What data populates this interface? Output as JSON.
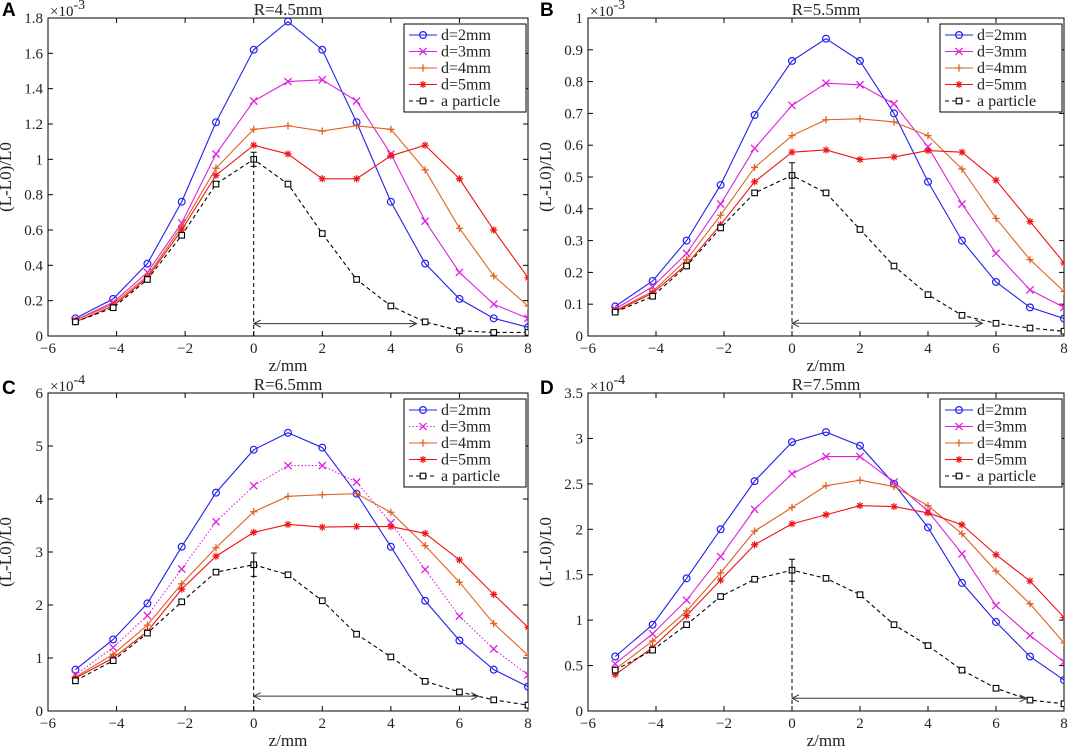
{
  "chart_data": [
    {
      "panel": "A",
      "type": "line",
      "title": "R=4.5mm",
      "xlabel": "z/mm",
      "ylabel": "(L-L0)/L0",
      "multiplier": "×10",
      "exponent": "-3",
      "xlim": [
        -6,
        8
      ],
      "ylim": [
        0,
        1.8
      ],
      "xticks": [
        -6,
        -4,
        -2,
        0,
        2,
        4,
        6,
        8
      ],
      "yticks": [
        0,
        0.2,
        0.4,
        0.6,
        0.8,
        1,
        1.2,
        1.4,
        1.6,
        1.8
      ],
      "ytick_labels": [
        "0",
        "0.2",
        "0.4",
        "0.6",
        "0.8",
        "1",
        "1.2",
        "1.4",
        "1.6",
        "1.8"
      ],
      "x": [
        -5.2,
        -4.1,
        -3.1,
        -2.1,
        -1.1,
        0,
        1,
        2,
        3,
        4,
        5,
        6,
        7,
        8
      ],
      "series": [
        {
          "name": "d=2mm",
          "color": "#2020ee",
          "marker": "circle",
          "values": [
            0.1,
            0.21,
            0.41,
            0.76,
            1.21,
            1.62,
            1.78,
            1.62,
            1.21,
            0.76,
            0.41,
            0.21,
            0.1,
            0.05
          ]
        },
        {
          "name": "d=3mm",
          "color": "#e020e0",
          "marker": "x",
          "values": [
            0.09,
            0.19,
            0.36,
            0.64,
            1.03,
            1.33,
            1.44,
            1.45,
            1.33,
            1.03,
            0.65,
            0.36,
            0.18,
            0.1
          ]
        },
        {
          "name": "d=4mm",
          "color": "#e06020",
          "marker": "plus",
          "values": [
            0.09,
            0.18,
            0.34,
            0.62,
            0.95,
            1.17,
            1.19,
            1.16,
            1.19,
            1.17,
            0.94,
            0.61,
            0.34,
            0.17
          ]
        },
        {
          "name": "d=5mm",
          "color": "#ee1515",
          "marker": "star",
          "values": [
            0.08,
            0.17,
            0.33,
            0.6,
            0.91,
            1.08,
            1.03,
            0.89,
            0.89,
            1.02,
            1.08,
            0.89,
            0.6,
            0.33
          ]
        },
        {
          "name": "a particle",
          "color": "#000000",
          "marker": "square",
          "dashed": true,
          "values": [
            0.08,
            0.16,
            0.32,
            0.57,
            0.86,
            1.0,
            0.86,
            0.58,
            0.32,
            0.17,
            0.08,
            0.03,
            0.02,
            0.02
          ]
        }
      ],
      "errorbar": {
        "x": 0,
        "y": 1.0,
        "err": 0.04
      },
      "arrow": {
        "from": 0,
        "to": 4.75,
        "y": 0.07
      },
      "vline": {
        "x": 0,
        "y_top": 1.0
      }
    },
    {
      "panel": "B",
      "type": "line",
      "title": "R=5.5mm",
      "xlabel": "z/mm",
      "ylabel": "(L-L0)/L0",
      "multiplier": "×10",
      "exponent": "-3",
      "xlim": [
        -6,
        8
      ],
      "ylim": [
        0,
        1.0
      ],
      "xticks": [
        -6,
        -4,
        -2,
        0,
        2,
        4,
        6,
        8
      ],
      "yticks": [
        0,
        0.1,
        0.2,
        0.3,
        0.4,
        0.5,
        0.6,
        0.7,
        0.8,
        0.9,
        1
      ],
      "ytick_labels": [
        "0",
        "0.1",
        "0.2",
        "0.3",
        "0.4",
        "0.5",
        "0.6",
        "0.7",
        "0.8",
        "0.9",
        "1"
      ],
      "x": [
        -5.2,
        -4.1,
        -3.1,
        -2.1,
        -1.1,
        0,
        1,
        2,
        3,
        4,
        5,
        6,
        7,
        8
      ],
      "series": [
        {
          "name": "d=2mm",
          "color": "#2020ee",
          "marker": "circle",
          "values": [
            0.093,
            0.173,
            0.3,
            0.475,
            0.695,
            0.865,
            0.935,
            0.865,
            0.7,
            0.485,
            0.3,
            0.17,
            0.09,
            0.055
          ]
        },
        {
          "name": "d=3mm",
          "color": "#e020e0",
          "marker": "x",
          "values": [
            0.085,
            0.155,
            0.26,
            0.415,
            0.59,
            0.725,
            0.795,
            0.79,
            0.73,
            0.595,
            0.415,
            0.26,
            0.145,
            0.09
          ]
        },
        {
          "name": "d=4mm",
          "color": "#e06020",
          "marker": "plus",
          "values": [
            0.08,
            0.14,
            0.24,
            0.38,
            0.53,
            0.63,
            0.68,
            0.683,
            0.673,
            0.63,
            0.525,
            0.37,
            0.24,
            0.14
          ]
        },
        {
          "name": "d=5mm",
          "color": "#ee1515",
          "marker": "star",
          "values": [
            0.077,
            0.135,
            0.225,
            0.35,
            0.485,
            0.578,
            0.585,
            0.555,
            0.563,
            0.583,
            0.578,
            0.49,
            0.36,
            0.23
          ]
        },
        {
          "name": "a particle",
          "color": "#000000",
          "marker": "square",
          "dashed": true,
          "values": [
            0.075,
            0.125,
            0.22,
            0.34,
            0.45,
            0.505,
            0.45,
            0.335,
            0.22,
            0.13,
            0.065,
            0.04,
            0.025,
            0.015
          ]
        }
      ],
      "errorbar": {
        "x": 0,
        "y": 0.505,
        "err": 0.04
      },
      "arrow": {
        "from": 0,
        "to": 5.6,
        "y": 0.04
      },
      "vline": {
        "x": 0,
        "y_top": 0.505
      }
    },
    {
      "panel": "C",
      "type": "line",
      "title": "R=6.5mm",
      "xlabel": "z/mm",
      "ylabel": "(L-L0)/L0",
      "multiplier": "×10",
      "exponent": "-4",
      "xlim": [
        -6,
        8
      ],
      "ylim": [
        0,
        6
      ],
      "xticks": [
        -6,
        -4,
        -2,
        0,
        2,
        4,
        6,
        8
      ],
      "yticks": [
        0,
        1,
        2,
        3,
        4,
        5,
        6
      ],
      "ytick_labels": [
        "0",
        "1",
        "2",
        "3",
        "4",
        "5",
        "6"
      ],
      "x": [
        -5.2,
        -4.1,
        -3.1,
        -2.1,
        -1.1,
        0,
        1,
        2,
        3,
        4,
        5,
        6,
        7,
        8
      ],
      "series": [
        {
          "name": "d=2mm",
          "color": "#2020ee",
          "marker": "circle",
          "values": [
            0.78,
            1.35,
            2.03,
            3.1,
            4.12,
            4.93,
            5.25,
            4.97,
            4.1,
            3.1,
            2.08,
            1.33,
            0.78,
            0.46
          ]
        },
        {
          "name": "d=3mm",
          "color": "#e020e0",
          "marker": "x",
          "dotted": true,
          "values": [
            0.68,
            1.2,
            1.8,
            2.68,
            3.57,
            4.25,
            4.63,
            4.63,
            4.32,
            3.55,
            2.67,
            1.79,
            1.17,
            0.68
          ]
        },
        {
          "name": "d=4mm",
          "color": "#e06020",
          "marker": "plus",
          "values": [
            0.64,
            1.07,
            1.62,
            2.4,
            3.08,
            3.76,
            4.05,
            4.08,
            4.1,
            3.75,
            3.12,
            2.43,
            1.65,
            1.05
          ]
        },
        {
          "name": "d=5mm",
          "color": "#ee1515",
          "marker": "star",
          "values": [
            0.62,
            1.0,
            1.5,
            2.3,
            2.92,
            3.37,
            3.52,
            3.47,
            3.48,
            3.48,
            3.35,
            2.85,
            2.2,
            1.58
          ]
        },
        {
          "name": "a particle",
          "color": "#000000",
          "marker": "square",
          "dashed": true,
          "values": [
            0.57,
            0.95,
            1.47,
            2.06,
            2.62,
            2.76,
            2.57,
            2.08,
            1.45,
            1.02,
            0.56,
            0.36,
            0.21,
            0.11
          ]
        }
      ],
      "errorbar": {
        "x": 0,
        "y": 2.76,
        "err": 0.22
      },
      "arrow": {
        "from": 0,
        "to": 6.55,
        "y": 0.28
      },
      "vline": {
        "x": 0,
        "y_top": 2.76
      }
    },
    {
      "panel": "D",
      "type": "line",
      "title": "R=7.5mm",
      "xlabel": "z/mm",
      "ylabel": "(L-L0)/L0",
      "multiplier": "×10",
      "exponent": "-4",
      "xlim": [
        -6,
        8
      ],
      "ylim": [
        0,
        3.5
      ],
      "xticks": [
        -6,
        -4,
        -2,
        0,
        2,
        4,
        6,
        8
      ],
      "yticks": [
        0,
        0.5,
        1,
        1.5,
        2,
        2.5,
        3,
        3.5
      ],
      "ytick_labels": [
        "0",
        "0.5",
        "1",
        "1.5",
        "2",
        "2.5",
        "3",
        "3.5"
      ],
      "x": [
        -5.2,
        -4.1,
        -3.1,
        -2.1,
        -1.1,
        0,
        1,
        2,
        3,
        4,
        5,
        6,
        7,
        8
      ],
      "series": [
        {
          "name": "d=2mm",
          "color": "#2020ee",
          "marker": "circle",
          "values": [
            0.6,
            0.95,
            1.46,
            2.0,
            2.53,
            2.96,
            3.07,
            2.92,
            2.5,
            2.02,
            1.41,
            0.98,
            0.6,
            0.34
          ]
        },
        {
          "name": "d=3mm",
          "color": "#e020e0",
          "marker": "x",
          "values": [
            0.52,
            0.85,
            1.22,
            1.7,
            2.22,
            2.61,
            2.8,
            2.8,
            2.52,
            2.2,
            1.73,
            1.16,
            0.83,
            0.54
          ]
        },
        {
          "name": "d=4mm",
          "color": "#e06020",
          "marker": "plus",
          "values": [
            0.46,
            0.77,
            1.1,
            1.52,
            1.98,
            2.24,
            2.48,
            2.54,
            2.47,
            2.26,
            1.95,
            1.54,
            1.18,
            0.75
          ]
        },
        {
          "name": "d=5mm",
          "color": "#ee1515",
          "marker": "star",
          "values": [
            0.4,
            0.7,
            1.05,
            1.44,
            1.83,
            2.06,
            2.16,
            2.26,
            2.25,
            2.18,
            2.05,
            1.72,
            1.43,
            1.03
          ]
        },
        {
          "name": "a particle",
          "color": "#000000",
          "marker": "square",
          "dashed": true,
          "values": [
            0.45,
            0.67,
            0.95,
            1.26,
            1.45,
            1.55,
            1.46,
            1.28,
            0.95,
            0.72,
            0.45,
            0.25,
            0.12,
            0.08
          ]
        }
      ],
      "errorbar": {
        "x": 0,
        "y": 1.55,
        "err": 0.12
      },
      "arrow": {
        "from": 0,
        "to": 6.9,
        "y": 0.14
      },
      "vline": {
        "x": 0,
        "y_top": 1.55
      }
    }
  ]
}
